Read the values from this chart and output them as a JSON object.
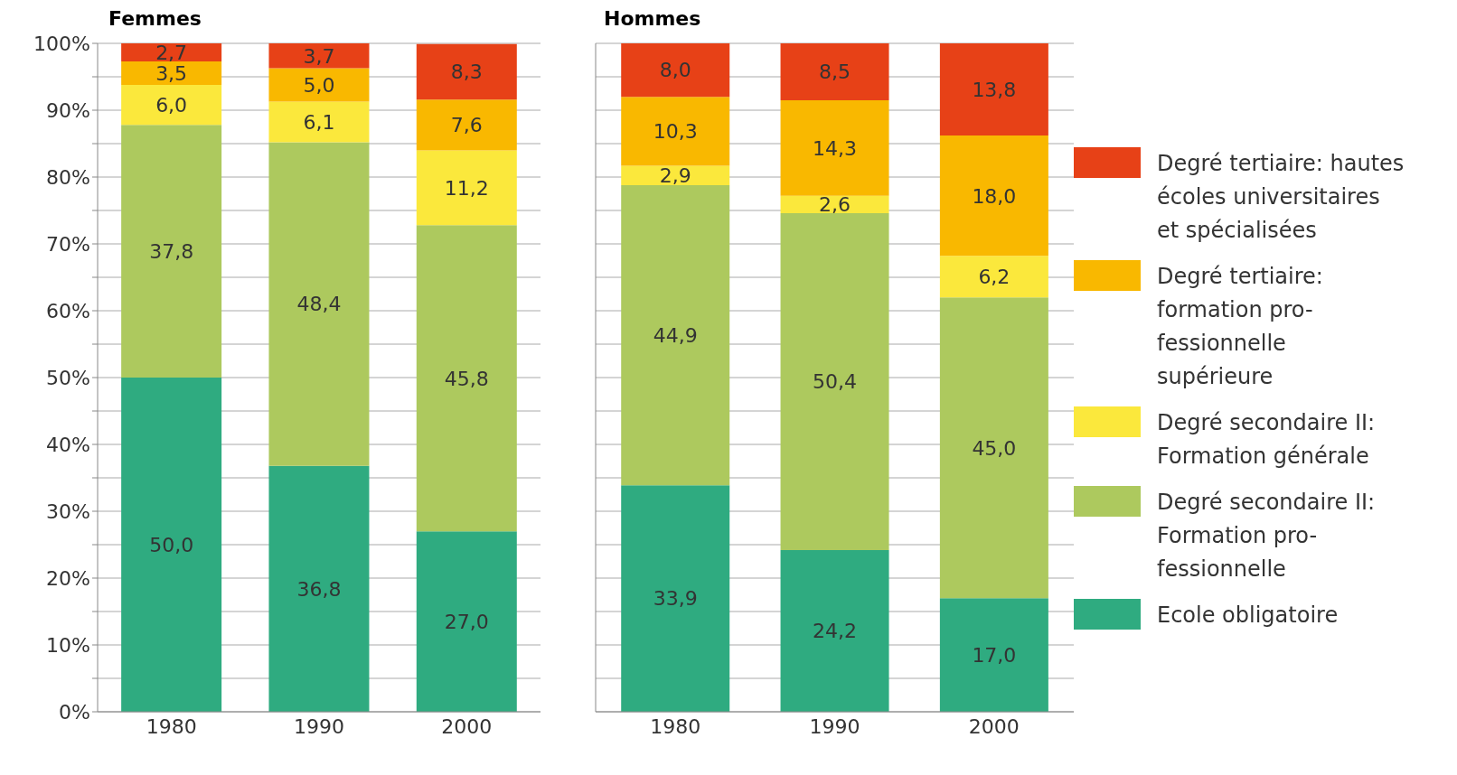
{
  "chart_data": [
    {
      "type": "bar",
      "title": "Femmes",
      "categories": [
        "1980",
        "1990",
        "2000"
      ],
      "stacked": true,
      "ylim": [
        0,
        100
      ],
      "yticks": [
        {
          "value": 0,
          "label": "0%"
        },
        {
          "value": 5,
          "label": null
        },
        {
          "value": 10,
          "label": "10%"
        },
        {
          "value": 15,
          "label": null
        },
        {
          "value": 20,
          "label": "20%"
        },
        {
          "value": 25,
          "label": null
        },
        {
          "value": 30,
          "label": "30%"
        },
        {
          "value": 35,
          "label": null
        },
        {
          "value": 40,
          "label": "40%"
        },
        {
          "value": 45,
          "label": null
        },
        {
          "value": 50,
          "label": "50%"
        },
        {
          "value": 55,
          "label": null
        },
        {
          "value": 60,
          "label": "60%"
        },
        {
          "value": 65,
          "label": null
        },
        {
          "value": 70,
          "label": "70%"
        },
        {
          "value": 75,
          "label": null
        },
        {
          "value": 80,
          "label": "80%"
        },
        {
          "value": 85,
          "label": null
        },
        {
          "value": 90,
          "label": "90%"
        },
        {
          "value": 95,
          "label": null
        },
        {
          "value": 100,
          "label": "100%"
        }
      ],
      "grid": "y",
      "legend": false,
      "series": [
        {
          "color": "#2fab80",
          "values": [
            50.0,
            36.8,
            27.0
          ],
          "value_labels": [
            "50,0",
            "36,8",
            "27,0"
          ]
        },
        {
          "color": "#adc95e",
          "values": [
            37.8,
            48.4,
            45.8
          ],
          "value_labels": [
            "37,8",
            "48,4",
            "45,8"
          ]
        },
        {
          "color": "#fbe83c",
          "values": [
            6.0,
            6.1,
            11.2
          ],
          "value_labels": [
            "6,0",
            "6,1",
            "11,2"
          ]
        },
        {
          "color": "#f9b800",
          "values": [
            3.5,
            5.0,
            7.6
          ],
          "value_labels": [
            "3,5",
            "5,0",
            "7,6"
          ]
        },
        {
          "color": "#e74117",
          "values": [
            2.7,
            3.7,
            8.3
          ],
          "value_labels": [
            "2,7",
            "3,7",
            "8,3"
          ]
        }
      ]
    },
    {
      "type": "bar",
      "title": "Hommes",
      "categories": [
        "1980",
        "1990",
        "2000"
      ],
      "stacked": true,
      "tick_labels": "x",
      "ylim": [
        0,
        100
      ],
      "yticks": [
        {
          "value": 0,
          "label": null
        },
        {
          "value": 5,
          "label": null
        },
        {
          "value": 10,
          "label": null
        },
        {
          "value": 15,
          "label": null
        },
        {
          "value": 20,
          "label": null
        },
        {
          "value": 25,
          "label": null
        },
        {
          "value": 30,
          "label": null
        },
        {
          "value": 35,
          "label": null
        },
        {
          "value": 40,
          "label": null
        },
        {
          "value": 45,
          "label": null
        },
        {
          "value": 50,
          "label": null
        },
        {
          "value": 55,
          "label": null
        },
        {
          "value": 60,
          "label": null
        },
        {
          "value": 65,
          "label": null
        },
        {
          "value": 70,
          "label": null
        },
        {
          "value": 75,
          "label": null
        },
        {
          "value": 80,
          "label": null
        },
        {
          "value": 85,
          "label": null
        },
        {
          "value": 90,
          "label": null
        },
        {
          "value": 95,
          "label": null
        },
        {
          "value": 100,
          "label": null
        }
      ],
      "grid": "y",
      "legend": "right",
      "series": [
        {
          "name": "Ecole obligatoire",
          "color": "#2fab80",
          "values": [
            33.9,
            24.2,
            17.0
          ],
          "value_labels": [
            "33,9",
            "24,2",
            "17,0"
          ]
        },
        {
          "name": "Degré secondaire II: Formation pro-fessionnelle",
          "color": "#adc95e",
          "values": [
            44.9,
            50.4,
            45.0
          ],
          "value_labels": [
            "44,9",
            "50,4",
            "45,0"
          ]
        },
        {
          "name": "Degré secondaire II: Formation générale",
          "color": "#fbe83c",
          "values": [
            2.9,
            2.6,
            6.2
          ],
          "value_labels": [
            "2,9",
            "2,6",
            "6,2"
          ]
        },
        {
          "name": "Degré tertiaire: formation pro-fessionnelle supérieure",
          "color": "#f9b800",
          "values": [
            10.3,
            14.3,
            18.0
          ],
          "value_labels": [
            "10,3",
            "14,3",
            "18,0"
          ]
        },
        {
          "name": "Degré tertiaire: hautes écoles universitaires et spécialisées",
          "color": "#e74117",
          "values": [
            8.0,
            8.5,
            13.8
          ],
          "value_labels": [
            "8,0",
            "8,5",
            "13,8"
          ]
        }
      ]
    }
  ]
}
